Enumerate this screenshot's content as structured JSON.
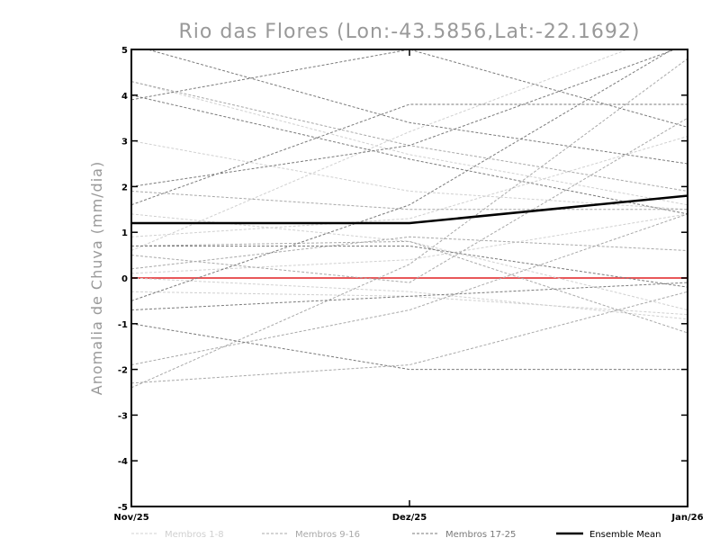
{
  "chart_data": {
    "type": "line",
    "title": "Rio das Flores (Lon:-43.5856,Lat:-22.1692)",
    "ylabel": "Anomalia de Chuva (mm/dia)",
    "xlabel": "",
    "categories": [
      "Nov/25",
      "Dez/25",
      "Jan/26"
    ],
    "ylim": [
      -5,
      5
    ],
    "yticks": [
      "-5",
      "-4",
      "-3",
      "-2",
      "-1",
      "0",
      "1",
      "2",
      "3",
      "4",
      "5"
    ],
    "reference_line": {
      "y": 0,
      "color": "#e8585a"
    },
    "groups": [
      {
        "name": "Membros 1-8",
        "color": "#d0d0d0"
      },
      {
        "name": "Membros 9-16",
        "color": "#a8a8a8"
      },
      {
        "name": "Membros 17-25",
        "color": "#7a7a7a"
      },
      {
        "name": "Ensemble Mean",
        "color": "#000000"
      }
    ],
    "series": [
      {
        "group": 0,
        "values": [
          3.0,
          1.9,
          1.5
        ]
      },
      {
        "group": 0,
        "values": [
          0.6,
          3.2,
          5.5
        ]
      },
      {
        "group": 0,
        "values": [
          0.0,
          -0.3,
          -0.9
        ]
      },
      {
        "group": 0,
        "values": [
          0.9,
          1.3,
          3.1
        ]
      },
      {
        "group": 0,
        "values": [
          4.3,
          2.7,
          1.6
        ]
      },
      {
        "group": 0,
        "values": [
          -0.3,
          -0.4,
          -0.8
        ]
      },
      {
        "group": 0,
        "values": [
          1.4,
          0.8,
          -0.7
        ]
      },
      {
        "group": 0,
        "values": [
          0.1,
          0.4,
          1.4
        ]
      },
      {
        "group": 1,
        "values": [
          -2.4,
          0.3,
          4.8
        ]
      },
      {
        "group": 1,
        "values": [
          1.9,
          1.5,
          1.5
        ]
      },
      {
        "group": 1,
        "values": [
          -1.9,
          -0.7,
          1.4
        ]
      },
      {
        "group": 1,
        "values": [
          0.2,
          0.9,
          0.6
        ]
      },
      {
        "group": 1,
        "values": [
          4.3,
          2.9,
          1.9
        ]
      },
      {
        "group": 1,
        "values": [
          -2.3,
          -1.9,
          -0.3
        ]
      },
      {
        "group": 1,
        "values": [
          0.5,
          -0.1,
          3.5
        ]
      },
      {
        "group": 1,
        "values": [
          0.7,
          0.8,
          -1.2
        ]
      },
      {
        "group": 2,
        "values": [
          1.6,
          3.8,
          3.8
        ]
      },
      {
        "group": 2,
        "values": [
          3.9,
          5.0,
          3.3
        ]
      },
      {
        "group": 2,
        "values": [
          -0.5,
          1.6,
          5.2
        ]
      },
      {
        "group": 2,
        "values": [
          2.0,
          2.9,
          5.1
        ]
      },
      {
        "group": 2,
        "values": [
          4.0,
          2.6,
          1.4
        ]
      },
      {
        "group": 2,
        "values": [
          -1.0,
          -2.0,
          -2.0
        ]
      },
      {
        "group": 2,
        "values": [
          -0.7,
          -0.4,
          -0.1
        ]
      },
      {
        "group": 2,
        "values": [
          5.1,
          3.4,
          2.5
        ]
      },
      {
        "group": 2,
        "values": [
          0.7,
          0.7,
          -0.2
        ]
      },
      {
        "group": 3,
        "values": [
          1.2,
          1.2,
          1.8
        ]
      }
    ]
  }
}
